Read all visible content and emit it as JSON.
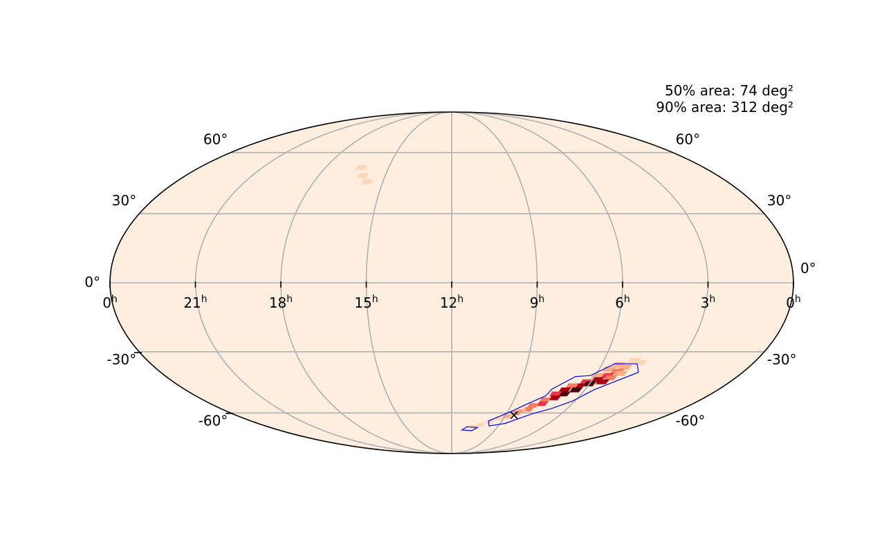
{
  "annotations": {
    "area_50": "50% area: 74 deg²",
    "area_90": "90% area: 312 deg²"
  },
  "chart_data": {
    "type": "heatmap",
    "projection": "mollweide",
    "grid": true,
    "ra_ticks": [
      {
        "ra_hours": 24,
        "label": "0"
      },
      {
        "ra_hours": 21,
        "label": "21"
      },
      {
        "ra_hours": 18,
        "label": "18"
      },
      {
        "ra_hours": 15,
        "label": "15"
      },
      {
        "ra_hours": 12,
        "label": "12"
      },
      {
        "ra_hours": 9,
        "label": "9"
      },
      {
        "ra_hours": 6,
        "label": "6"
      },
      {
        "ra_hours": 3,
        "label": "3"
      },
      {
        "ra_hours": 0,
        "label": "0"
      }
    ],
    "ra_unit": "h",
    "dec_ticks": [
      {
        "dec": 60,
        "label": "60°"
      },
      {
        "dec": 30,
        "label": "30°"
      },
      {
        "dec": 0,
        "label": "0°"
      },
      {
        "dec": -30,
        "label": "-30°"
      },
      {
        "dec": -60,
        "label": "-60°"
      }
    ],
    "colors": {
      "background": "#fdeee0",
      "contour": "#0000ff",
      "heat": [
        "#fdeee0",
        "#fdd7b6",
        "#fcae84",
        "#f77b63",
        "#e8354a",
        "#a90018",
        "#4a000a"
      ]
    },
    "marker": {
      "symbol": "×",
      "ra_hours": 8.55,
      "dec": -61
    },
    "probability_cells": [
      {
        "ra_hours": 16.3,
        "dec": 52,
        "p": 0.06
      },
      {
        "ra_hours": 16.0,
        "dec": 48,
        "p": 0.05
      },
      {
        "ra_hours": 15.7,
        "dec": 45,
        "p": 0.04
      },
      {
        "ra_hours": 4.8,
        "dec": -34,
        "p": 0.15
      },
      {
        "ra_hours": 4.5,
        "dec": -35,
        "p": 0.1
      },
      {
        "ra_hours": 5.3,
        "dec": -36,
        "p": 0.25
      },
      {
        "ra_hours": 5.0,
        "dec": -37,
        "p": 0.3
      },
      {
        "ra_hours": 5.6,
        "dec": -38,
        "p": 0.35
      },
      {
        "ra_hours": 5.2,
        "dec": -39,
        "p": 0.55
      },
      {
        "ra_hours": 5.0,
        "dec": -40,
        "p": 0.35
      },
      {
        "ra_hours": 5.5,
        "dec": -41,
        "p": 0.65
      },
      {
        "ra_hours": 5.9,
        "dec": -41,
        "p": 0.4
      },
      {
        "ra_hours": 5.3,
        "dec": -42,
        "p": 0.55
      },
      {
        "ra_hours": 5.8,
        "dec": -43,
        "p": 0.85
      },
      {
        "ra_hours": 5.5,
        "dec": -44,
        "p": 0.75
      },
      {
        "ra_hours": 6.2,
        "dec": -44,
        "p": 0.6
      },
      {
        "ra_hours": 6.0,
        "dec": -45,
        "p": 1.0
      },
      {
        "ra_hours": 6.4,
        "dec": -46,
        "p": 0.85
      },
      {
        "ra_hours": 6.7,
        "dec": -46,
        "p": 0.55
      },
      {
        "ra_hours": 6.4,
        "dec": -48,
        "p": 1.0
      },
      {
        "ra_hours": 6.9,
        "dec": -48,
        "p": 0.8
      },
      {
        "ra_hours": 6.8,
        "dec": -50,
        "p": 0.95
      },
      {
        "ra_hours": 7.2,
        "dec": -50,
        "p": 0.6
      },
      {
        "ra_hours": 7.1,
        "dec": -52,
        "p": 0.8
      },
      {
        "ra_hours": 7.5,
        "dec": -53,
        "p": 0.55
      },
      {
        "ra_hours": 7.5,
        "dec": -55,
        "p": 0.7
      },
      {
        "ra_hours": 7.9,
        "dec": -56,
        "p": 0.5
      },
      {
        "ra_hours": 8.0,
        "dec": -58,
        "p": 0.55
      },
      {
        "ra_hours": 8.3,
        "dec": -59,
        "p": 0.4
      },
      {
        "ra_hours": 8.5,
        "dec": -60,
        "p": 0.5
      },
      {
        "ra_hours": 8.9,
        "dec": -62,
        "p": 0.3
      },
      {
        "ra_hours": 9.3,
        "dec": -63,
        "p": 0.22
      },
      {
        "ra_hours": 9.7,
        "dec": -65,
        "p": 0.15
      },
      {
        "ra_hours": 10.2,
        "dec": -67,
        "p": 0.1
      },
      {
        "ra_hours": 10.6,
        "dec": -68,
        "p": 0.1
      }
    ],
    "contour_90": [
      {
        "ra_hours": 4.6,
        "dec": -35.5
      },
      {
        "ra_hours": 5.5,
        "dec": -35.5
      },
      {
        "ra_hours": 6.2,
        "dec": -41.0
      },
      {
        "ra_hours": 6.8,
        "dec": -41.5
      },
      {
        "ra_hours": 7.5,
        "dec": -47.5
      },
      {
        "ra_hours": 7.6,
        "dec": -51.0
      },
      {
        "ra_hours": 8.3,
        "dec": -55.5
      },
      {
        "ra_hours": 8.8,
        "dec": -59.0
      },
      {
        "ra_hours": 9.8,
        "dec": -64.5
      },
      {
        "ra_hours": 9.6,
        "dec": -67.5
      },
      {
        "ra_hours": 8.7,
        "dec": -66.0
      },
      {
        "ra_hours": 7.6,
        "dec": -60.5
      },
      {
        "ra_hours": 6.8,
        "dec": -57.5
      },
      {
        "ra_hours": 6.1,
        "dec": -53.5
      },
      {
        "ra_hours": 5.6,
        "dec": -48.0
      },
      {
        "ra_hours": 5.0,
        "dec": -44.0
      },
      {
        "ra_hours": 4.3,
        "dec": -39.5
      }
    ],
    "contour_90_island": [
      {
        "ra_hours": 10.3,
        "dec": -68.5
      },
      {
        "ra_hours": 11.0,
        "dec": -68.0
      },
      {
        "ra_hours": 11.3,
        "dec": -70.0
      },
      {
        "ra_hours": 10.6,
        "dec": -70.5
      }
    ]
  }
}
